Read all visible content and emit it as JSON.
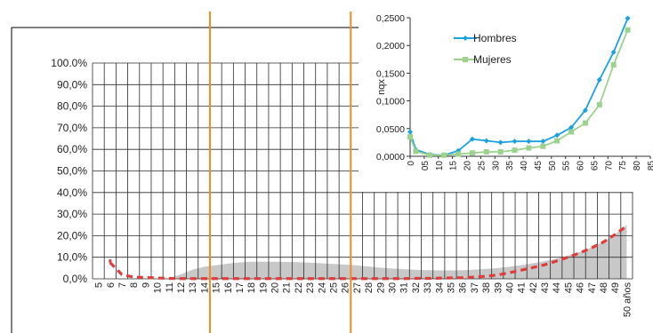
{
  "chart_data": [
    {
      "type": "line",
      "subtype": "line-with-area",
      "categories": [
        "5",
        "6",
        "7",
        "8",
        "9",
        "10",
        "11",
        "12",
        "13",
        "14",
        "15",
        "16",
        "17",
        "18",
        "19",
        "20",
        "21",
        "22",
        "23",
        "24",
        "25",
        "26",
        "27",
        "28",
        "29",
        "30",
        "31",
        "32",
        "33",
        "34",
        "35",
        "36",
        "37",
        "38",
        "39",
        "40",
        "41",
        "42",
        "43",
        "44",
        "45",
        "46",
        "47",
        "48",
        "49",
        "50 años"
      ],
      "y_tick_labels": [
        "0,0%",
        "10,0%",
        "20,0%",
        "30,0%",
        "40,0%",
        "50,0%",
        "60,0%",
        "70,0%",
        "80,0%",
        "90,0%",
        "100.0%"
      ],
      "ylim": [
        0,
        100
      ],
      "y_unit": "%",
      "grid": true,
      "series": [
        {
          "style": "dashed-line",
          "color": "#e03c3c",
          "values": [
            null,
            7.5,
            2.0,
            0.8,
            0.6,
            0.4,
            0.2,
            0.1,
            0.1,
            0.1,
            0.1,
            0.1,
            0.1,
            0.1,
            0.1,
            0.1,
            0.1,
            0.1,
            0.1,
            0.1,
            0.1,
            0.1,
            0.1,
            0.1,
            0.1,
            0.1,
            0.1,
            0.2,
            0.2,
            0.3,
            0.4,
            0.5,
            0.8,
            1.2,
            1.8,
            2.8,
            4.0,
            5.2,
            6.5,
            8.2,
            10.0,
            12.0,
            14.3,
            17.0,
            20.5,
            24.5
          ]
        },
        {
          "style": "filled-area",
          "color": "#c8c8c8",
          "values": [
            null,
            null,
            null,
            null,
            null,
            null,
            0.3,
            2.0,
            4.2,
            5.6,
            6.3,
            7.0,
            7.6,
            7.9,
            7.9,
            7.9,
            7.8,
            7.7,
            7.5,
            7.2,
            6.9,
            6.6,
            6.2,
            5.7,
            5.2,
            4.8,
            4.5,
            4.2,
            4.0,
            3.9,
            3.9,
            4.0,
            4.2,
            4.6,
            5.0,
            5.6,
            6.3,
            7.2,
            8.2,
            9.3,
            10.8,
            12.5,
            14.5,
            17.2,
            20.5,
            25.0
          ]
        }
      ],
      "vertical_markers": {
        "color": "#f08a24",
        "after_categories": [
          "14",
          "26"
        ]
      }
    },
    {
      "type": "line",
      "categories": [
        "0",
        "05",
        "10",
        "15",
        "20",
        "25",
        "30",
        "35",
        "40",
        "45",
        "50",
        "55",
        "60",
        "65",
        "70",
        "75",
        "80",
        "85"
      ],
      "y_tick_labels": [
        "0,0000",
        "0,0500",
        "0,1000",
        "0,1500",
        "0,2000",
        "0,2500"
      ],
      "ylim": [
        0,
        0.25
      ],
      "ylabel": "nqx",
      "grid": false,
      "legend_position": "top-left",
      "series": [
        {
          "name": "Hombres",
          "color": "#1ba1e2",
          "marker": "diamond",
          "points": [
            [
              0,
              0.044
            ],
            [
              2,
              0.012
            ],
            [
              7,
              0.003
            ],
            [
              12,
              0.002
            ],
            [
              17,
              0.01
            ],
            [
              22,
              0.031
            ],
            [
              27,
              0.028
            ],
            [
              32,
              0.025
            ],
            [
              37,
              0.027
            ],
            [
              42,
              0.027
            ],
            [
              47,
              0.027
            ],
            [
              52,
              0.038
            ],
            [
              57,
              0.052
            ],
            [
              62,
              0.083
            ],
            [
              67,
              0.138
            ],
            [
              72,
              0.188
            ],
            [
              77,
              0.249
            ]
          ]
        },
        {
          "name": "Mujeres",
          "color": "#9bd38e",
          "marker": "square",
          "points": [
            [
              0,
              0.035
            ],
            [
              2,
              0.009
            ],
            [
              7,
              0.002
            ],
            [
              12,
              0.002
            ],
            [
              17,
              0.004
            ],
            [
              22,
              0.006
            ],
            [
              27,
              0.008
            ],
            [
              32,
              0.008
            ],
            [
              37,
              0.011
            ],
            [
              42,
              0.015
            ],
            [
              47,
              0.018
            ],
            [
              52,
              0.028
            ],
            [
              57,
              0.044
            ],
            [
              62,
              0.06
            ],
            [
              67,
              0.093
            ],
            [
              72,
              0.165
            ],
            [
              77,
              0.228
            ]
          ]
        }
      ]
    }
  ]
}
